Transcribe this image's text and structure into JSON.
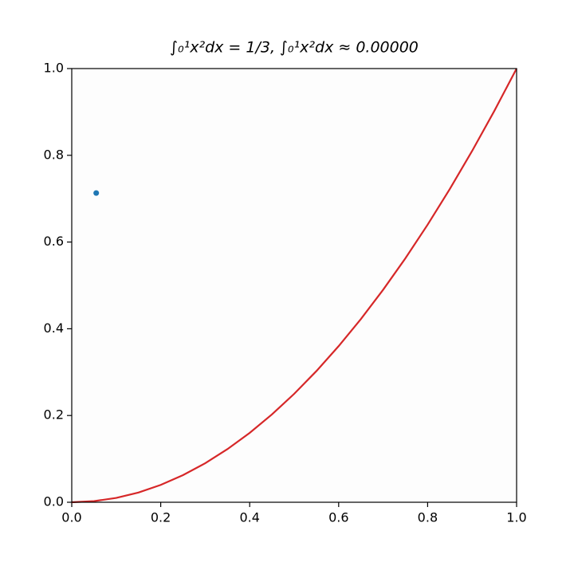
{
  "chart_data": {
    "type": "line",
    "title": "∫₀¹x²dx = 1/3, ∫₀¹x²dx ≈ 0.00000",
    "series": [
      {
        "type": "line",
        "color": "#d62728",
        "x": [
          0,
          0.05,
          0.1,
          0.15,
          0.2,
          0.25,
          0.3,
          0.35,
          0.4,
          0.45,
          0.5,
          0.55,
          0.6,
          0.65,
          0.7,
          0.75,
          0.8,
          0.85,
          0.9,
          0.95,
          1
        ],
        "values": [
          0,
          0.0025,
          0.01,
          0.0225,
          0.04,
          0.0625,
          0.09,
          0.1225,
          0.16,
          0.2025,
          0.25,
          0.3025,
          0.36,
          0.4225,
          0.49,
          0.5625,
          0.64,
          0.7225,
          0.81,
          0.9025,
          1
        ]
      },
      {
        "type": "scatter",
        "color": "#1f77b4",
        "x": [
          0.055
        ],
        "values": [
          0.713
        ]
      }
    ],
    "xlim": [
      0,
      1
    ],
    "ylim": [
      0,
      1
    ],
    "xticks": [
      {
        "value": 0,
        "label": "0.0"
      },
      0.2,
      0.4,
      0.6,
      0.8,
      {
        "value": 1,
        "label": "1.0"
      }
    ],
    "yticks": [
      {
        "value": 0,
        "label": "0.0"
      },
      0.2,
      0.4,
      0.6,
      0.8,
      {
        "value": 1,
        "label": "1.0"
      }
    ],
    "grid": false
  }
}
